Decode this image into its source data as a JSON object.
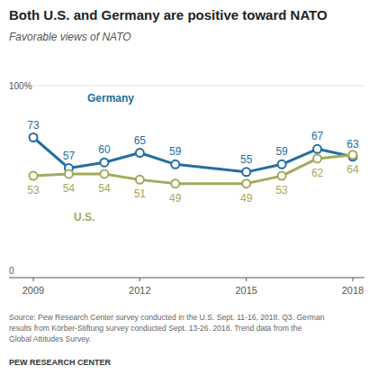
{
  "chart_data": {
    "type": "line",
    "title": "Both U.S. and Germany are positive toward NATO",
    "subtitle": "Favorable views of NATO",
    "x": [
      2009,
      2010,
      2011,
      2012,
      2013,
      2015,
      2016,
      2017,
      2018
    ],
    "xlim": [
      2009,
      2018
    ],
    "xticks": [
      2009,
      2012,
      2015,
      2018
    ],
    "ylim": [
      0,
      100
    ],
    "yticks": [
      0,
      {
        "value": 100,
        "label": "100%"
      }
    ],
    "grid": true,
    "data_labels": true,
    "marker": "circle",
    "series": [
      {
        "name": "Germany",
        "color": "#236fa0",
        "values": [
          73,
          57,
          60,
          65,
          59,
          55,
          59,
          67,
          63
        ]
      },
      {
        "name": "U.S.",
        "color": "#a3a95b",
        "values": [
          53,
          54,
          54,
          51,
          49,
          49,
          53,
          62,
          64
        ]
      }
    ],
    "source": [
      "Source: Pew Research Center survey conducted in the U.S. Sept. 11-16, 2018. Q3. German",
      "results from Körber-Stiftung survey conducted Sept. 13-26, 2018. Trend data from the",
      "Global Attitudes Survey."
    ],
    "credit": "PEW RESEARCH CENTER"
  }
}
